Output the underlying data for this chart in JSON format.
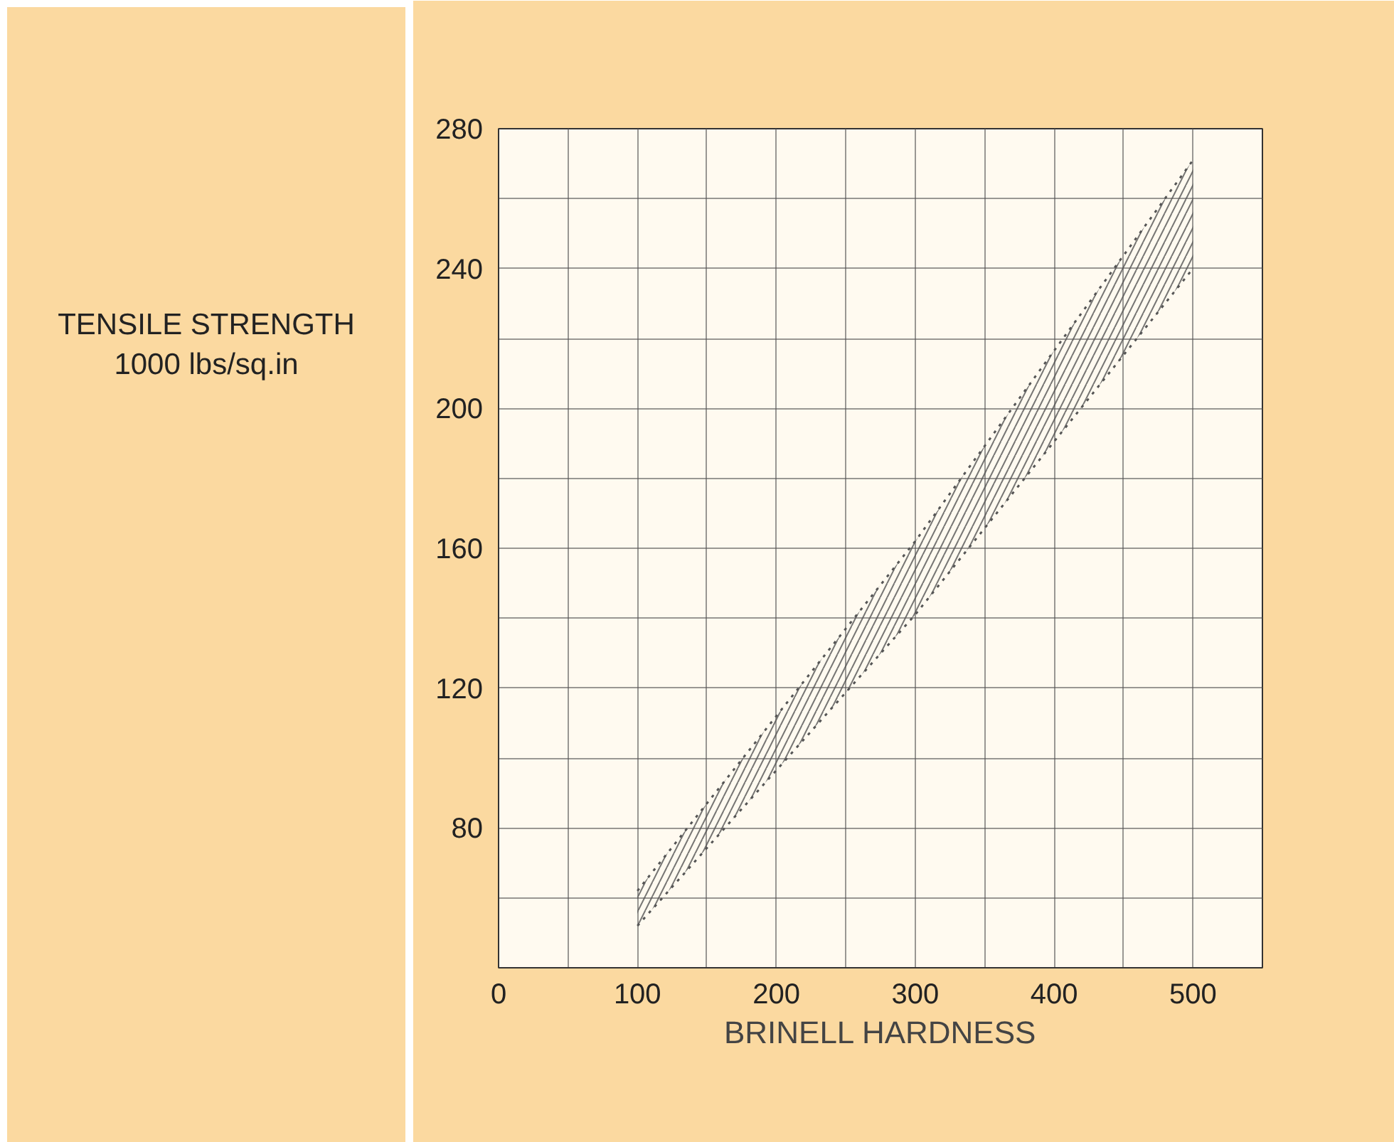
{
  "chart_data": {
    "type": "line",
    "xlabel": "BRINELL HARDNESS",
    "ylabel": "TENSILE STRENGTH\n1000 lbs/sq.in",
    "xlim": [
      0,
      550
    ],
    "ylim": [
      40,
      280
    ],
    "xticks": [
      0,
      {
        "value": 50,
        "label": null
      },
      100,
      {
        "value": 150,
        "label": null
      },
      200,
      {
        "value": 250,
        "label": null
      },
      300,
      {
        "value": 350,
        "label": null
      },
      400,
      {
        "value": 450,
        "label": null
      },
      500
    ],
    "yticks": [
      {
        "value": 60,
        "label": null
      },
      80,
      {
        "value": 100,
        "label": null
      },
      120,
      {
        "value": 140,
        "label": null
      },
      160,
      {
        "value": 180,
        "label": null
      },
      200,
      {
        "value": 220,
        "label": null
      },
      240,
      {
        "value": 260,
        "label": null
      },
      280
    ],
    "grid": true,
    "line_style": "dotted",
    "series": [
      {
        "color": "#555555",
        "x": [
          100,
          300,
          500
        ],
        "values": [
          62,
          162,
          271
        ],
        "lower": [
          52,
          141,
          240
        ],
        "upper": [
          62,
          162,
          271
        ]
      },
      {
        "color": "#555555",
        "x": [
          100,
          300,
          500
        ],
        "values": [
          52,
          141,
          240
        ]
      }
    ]
  }
}
